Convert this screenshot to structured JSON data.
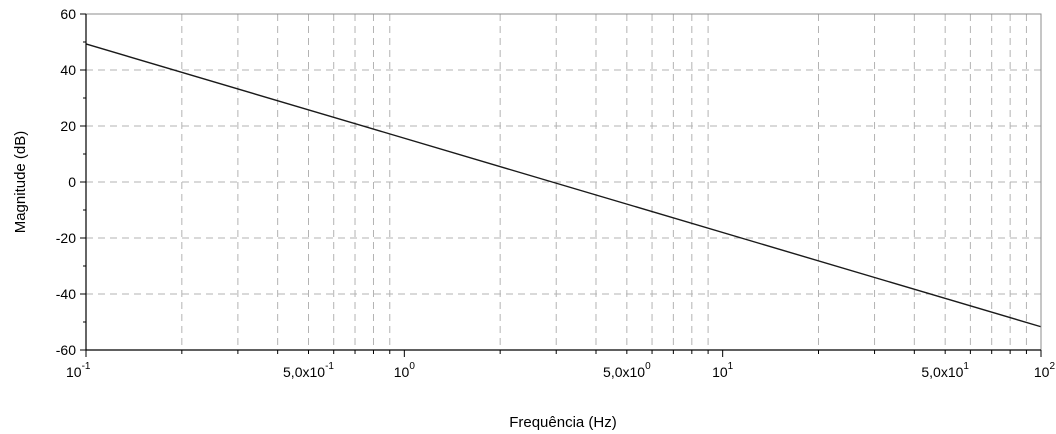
{
  "chart_data": {
    "type": "line",
    "title": "",
    "xlabel": "Frequência (Hz)",
    "ylabel": "Magnitude (dB)",
    "xscale": "log",
    "xlim": [
      0.1,
      100
    ],
    "ylim": [
      -60,
      60
    ],
    "grid": true,
    "grid_style": "dashed",
    "legend": "none",
    "line_color": "#1a1a1a",
    "grid_color": "#b3b3b3",
    "y_ticks": [
      {
        "value": 60,
        "label": "60"
      },
      {
        "value": 40,
        "label": "40"
      },
      {
        "value": 20,
        "label": "20"
      },
      {
        "value": 0,
        "label": "0"
      },
      {
        "value": -20,
        "label": "-20"
      },
      {
        "value": -40,
        "label": "-40"
      },
      {
        "value": -60,
        "label": "-60"
      }
    ],
    "x_ticks": [
      {
        "value": 0.1,
        "base": "10",
        "exp": "-1"
      },
      {
        "value": 0.5,
        "base": "5,0x10",
        "exp": "-1"
      },
      {
        "value": 1,
        "base": "10",
        "exp": "0"
      },
      {
        "value": 5,
        "base": "5,0x10",
        "exp": "0"
      },
      {
        "value": 10,
        "base": "10",
        "exp": "1"
      },
      {
        "value": 50,
        "base": "5,0x10",
        "exp": "1"
      },
      {
        "value": 100,
        "base": "10",
        "exp": "2"
      }
    ],
    "series": [
      {
        "values": [
          {
            "x": 0.1,
            "y": 49.3
          },
          {
            "x": 100,
            "y": -51.7
          }
        ]
      }
    ]
  }
}
